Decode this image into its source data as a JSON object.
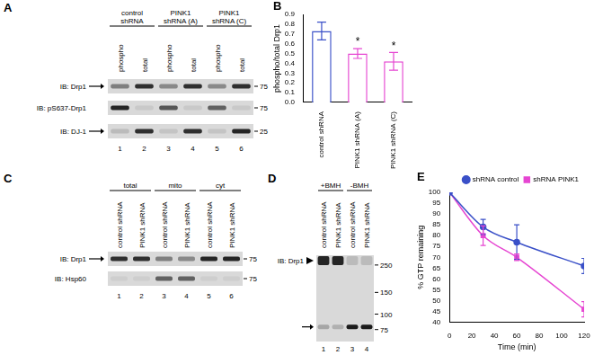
{
  "blots": [
    {
      "letter": "A",
      "groups": [
        {
          "label": "control shRNA",
          "lanes": [
            "phospho",
            "total"
          ]
        },
        {
          "label": "PINK1 shRNA (A)",
          "lanes": [
            "phospho",
            "total"
          ]
        },
        {
          "label": "PINK1 shRNA (C)",
          "lanes": [
            "phospho",
            "total"
          ]
        }
      ],
      "rows": [
        {
          "label": "IB: Drp1",
          "kda": 75,
          "bands": [
            0.45,
            0.85,
            0.4,
            0.85,
            0.4,
            0.85
          ]
        },
        {
          "label": "IB: pS637-Drp1",
          "kda": 75,
          "bands": [
            0.9,
            0.08,
            0.65,
            0.08,
            0.6,
            0.08
          ]
        },
        {
          "label": "IB: DJ-1",
          "kda": 25,
          "bands": [
            0.15,
            0.85,
            0.1,
            0.85,
            0.1,
            0.9
          ]
        }
      ],
      "lane_numbers": [
        1,
        2,
        3,
        4,
        5,
        6
      ]
    },
    {
      "letter": "C",
      "groups": [
        {
          "label": "total",
          "lanes": [
            "control shRNA",
            "PINK1 shRNA"
          ]
        },
        {
          "label": "mito",
          "lanes": [
            "control shRNA",
            "PINK1 shRNA"
          ]
        },
        {
          "label": "cyt",
          "lanes": [
            "control shRNA",
            "PINK1 shRNA"
          ]
        }
      ],
      "rows": [
        {
          "label": "IB: Drp1",
          "kda": 75,
          "bands": [
            0.85,
            0.85,
            0.45,
            0.4,
            0.9,
            0.9
          ]
        },
        {
          "label": "IB: Hsp60",
          "kda": 75,
          "bands": [
            0.05,
            0.05,
            0.6,
            0.6,
            0.05,
            0.05
          ]
        }
      ],
      "lane_numbers": [
        1,
        2,
        3,
        4,
        5,
        6
      ]
    },
    {
      "letter": "D",
      "groups": [
        {
          "label": "+BMH",
          "lanes": [
            "control shRNA",
            "PINK1 shRNA"
          ]
        },
        {
          "label": "-BMH",
          "lanes": [
            "control shRNA",
            "PINK1 shRNA"
          ]
        }
      ],
      "rows": [
        {
          "label": "IB: Drp1",
          "bands": {
            "upper": [
              0.9,
              0.9,
              0.15,
              0.15
            ],
            "lower": [
              0.25,
              0.2,
              0.95,
              0.95
            ]
          }
        }
      ],
      "kda_markers": [
        250,
        150,
        100,
        75
      ],
      "lane_numbers": [
        1,
        2,
        3,
        4
      ]
    }
  ],
  "chart_data": [
    {
      "letter": "B",
      "type": "bar",
      "categories": [
        "control shRNA",
        "PINK1 shRNA (A)",
        "PINK1 shRNA (C)"
      ],
      "values": [
        0.73,
        0.5,
        0.42
      ],
      "errors": [
        0.09,
        0.05,
        0.09
      ],
      "significance": [
        null,
        "*",
        "*"
      ],
      "colors": [
        "#3a50c8",
        "#e646d2",
        "#e646d2"
      ],
      "y_label": "phospho/total Drp1",
      "ylim": [
        0,
        0.9
      ],
      "yticks": [
        {
          "value": 0,
          "label": "0.0"
        },
        0.1,
        0.2,
        0.3,
        0.4,
        0.5,
        0.6,
        0.7,
        0.8,
        0.9
      ],
      "grid": false
    },
    {
      "letter": "E",
      "type": "line",
      "x_label": "Time (min)",
      "y_label": "% GTP remaining",
      "x": [
        0,
        30,
        60,
        120
      ],
      "xlim": [
        0,
        120
      ],
      "xticks": [
        0,
        20,
        40,
        60,
        80,
        100,
        120
      ],
      "ylim": [
        40,
        100
      ],
      "yticks": [
        40,
        45,
        50,
        55,
        60,
        65,
        70,
        75,
        80,
        85,
        90,
        95,
        100
      ],
      "grid": false,
      "legend": "top right",
      "series": [
        {
          "name": "shRNA control",
          "color": "#3a50c8",
          "marker": "circle",
          "values": [
            100,
            84,
            77,
            66
          ],
          "errors": [
            0,
            3.5,
            8,
            3.5
          ]
        },
        {
          "name": "shRNA PINK1",
          "color": "#e646d2",
          "marker": "square",
          "values": [
            100,
            80,
            70,
            46
          ],
          "errors": [
            0,
            4.5,
            1.5,
            3.5
          ]
        }
      ]
    }
  ]
}
